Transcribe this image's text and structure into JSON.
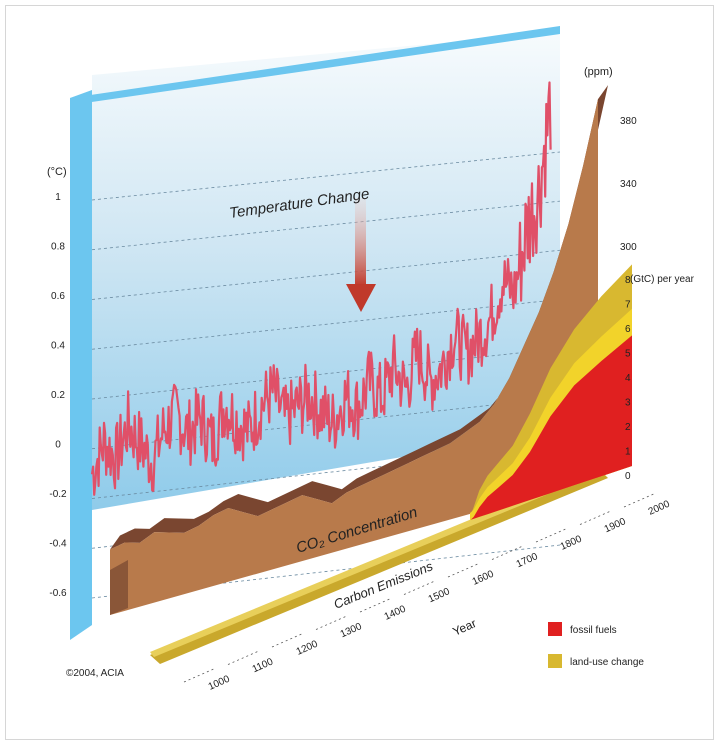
{
  "chart_data": {
    "type": "area",
    "panels": [
      {
        "name": "temperature",
        "title": "Temperature Change",
        "unit": "(°C)",
        "y_ticks": [
          "1",
          "0.8",
          "0.6",
          "0.4",
          "0.2",
          "0",
          "-0.2",
          "-0.4",
          "-0.6"
        ],
        "color": "#e05068"
      },
      {
        "name": "co2",
        "title": "CO₂ Concentration",
        "unit": "(ppm)",
        "y_ticks": [
          "380",
          "340",
          "300"
        ],
        "color": "#b87a4b"
      },
      {
        "name": "emissions",
        "title": "Carbon Emissions",
        "unit": "(GtC) per year",
        "y_ticks": [
          "8",
          "7",
          "6",
          "5",
          "4",
          "3",
          "2",
          "1",
          "0"
        ],
        "series": [
          {
            "name": "fossil fuels",
            "color": "#e02020"
          },
          {
            "name": "land-use change",
            "color": "#d8b830"
          }
        ]
      }
    ],
    "x_label": "Year",
    "x_ticks": [
      "1000",
      "1100",
      "1200",
      "1300",
      "1400",
      "1500",
      "1600",
      "1700",
      "1800",
      "1900",
      "2000"
    ],
    "temperature_anomaly": [
      -0.1,
      0.02,
      -0.05,
      0.08,
      0.0,
      -0.08,
      0.05,
      0.1,
      0.02,
      0.08,
      -0.03,
      0.12,
      0.05,
      0.0,
      0.1,
      0.15,
      0.03,
      0.08,
      0.12,
      0.05,
      0.0,
      0.1,
      0.05,
      0.15,
      0.08,
      0.2,
      0.1,
      0.25,
      0.12,
      0.18,
      0.3,
      0.22,
      0.28,
      0.35,
      0.5,
      0.45,
      0.7,
      0.85,
      1.2
    ],
    "co2_ppm": [
      280,
      281,
      280,
      282,
      281,
      280,
      281,
      283,
      284,
      282,
      280,
      281,
      282,
      283,
      281,
      279,
      281,
      282,
      283,
      284,
      285,
      286,
      287,
      288,
      290,
      292,
      296,
      302,
      310,
      318,
      328,
      340,
      355,
      372
    ],
    "emissions_gtc": {
      "years": [
        1750,
        1800,
        1850,
        1900,
        1920,
        1940,
        1950,
        1960,
        1970,
        1980,
        1990,
        2000
      ],
      "fossil_fuels": [
        0.0,
        0.0,
        0.1,
        0.5,
        0.9,
        1.2,
        1.6,
        2.5,
        4.0,
        5.2,
        6.0,
        6.8
      ],
      "land_use_change": [
        0.1,
        0.2,
        0.4,
        0.6,
        0.7,
        0.8,
        0.9,
        1.1,
        1.2,
        1.3,
        1.5,
        1.6
      ]
    },
    "legend": [
      {
        "label": "fossil fuels",
        "color": "#e02020"
      },
      {
        "label": "land-use change",
        "color": "#d8b830"
      }
    ],
    "credit": "©2004, ACIA"
  }
}
